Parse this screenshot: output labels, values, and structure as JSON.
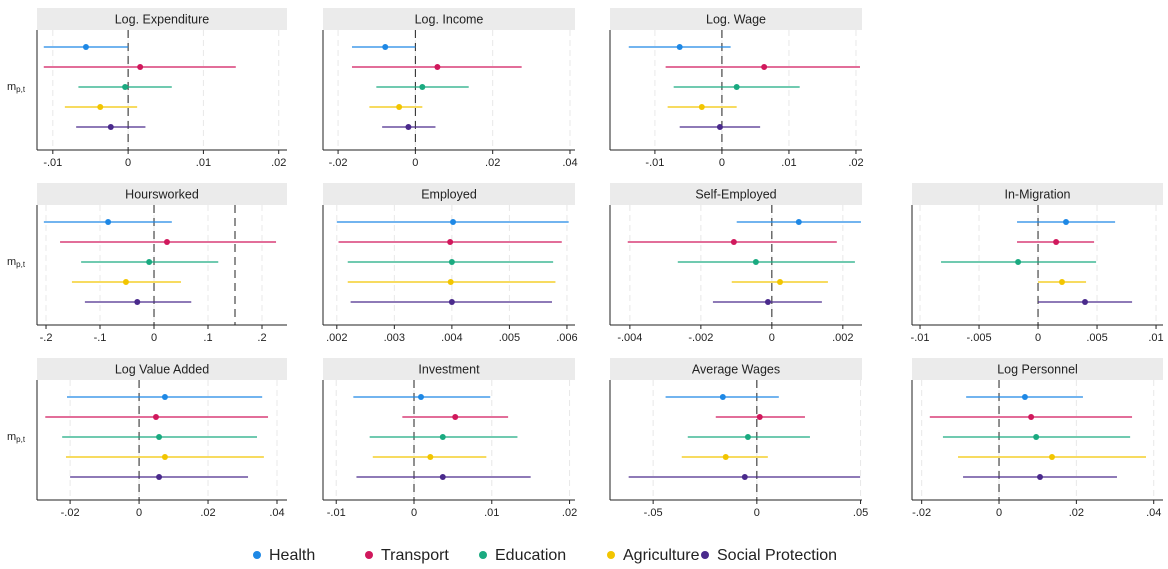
{
  "legend": [
    {
      "name": "Health",
      "color": "#1e88e5"
    },
    {
      "name": "Transport",
      "color": "#d0185c"
    },
    {
      "name": "Education",
      "color": "#1aaa80"
    },
    {
      "name": "Agriculture",
      "color": "#f2c500"
    },
    {
      "name": "Social Protection",
      "color": "#4a2a8c"
    }
  ],
  "chart_data": [
    {
      "type": "dot-whisker",
      "title": "Log. Expenditure",
      "ylabel": {
        "base": "m",
        "sub": "p,t"
      },
      "grid": true,
      "ref_lines": [
        0
      ],
      "xlim": [
        -0.0121,
        0.0211
      ],
      "xticks": [
        {
          "value": -0.01,
          "label": "-.01"
        },
        0,
        {
          "value": 0.01,
          "label": ".01"
        },
        {
          "value": 0.02,
          "label": ".02"
        }
      ],
      "points": [
        {
          "value": -0.0056,
          "lower": -0.0112,
          "upper": 0.0
        },
        {
          "value": 0.0016,
          "lower": -0.0112,
          "upper": 0.0143
        },
        {
          "value": -0.0004,
          "lower": -0.0066,
          "upper": 0.0058
        },
        {
          "value": -0.0037,
          "lower": -0.0084,
          "upper": 0.0012
        },
        {
          "value": -0.0023,
          "lower": -0.0069,
          "upper": 0.0023
        }
      ]
    },
    {
      "type": "dot-whisker",
      "title": "Log. Income",
      "grid": true,
      "ref_lines": [
        0
      ],
      "xlim": [
        -0.0239,
        0.0413
      ],
      "xticks": [
        {
          "value": -0.02,
          "label": "-.02"
        },
        0,
        {
          "value": 0.02,
          "label": ".02"
        },
        {
          "value": 0.04,
          "label": ".04"
        }
      ],
      "points": [
        {
          "value": -0.0078,
          "lower": -0.0164,
          "upper": 0.0
        },
        {
          "value": 0.0057,
          "lower": -0.0164,
          "upper": 0.0275
        },
        {
          "value": 0.0018,
          "lower": -0.0101,
          "upper": 0.0138
        },
        {
          "value": -0.0042,
          "lower": -0.0119,
          "upper": 0.0018
        },
        {
          "value": -0.0018,
          "lower": -0.0086,
          "upper": 0.0052
        }
      ]
    },
    {
      "type": "dot-whisker",
      "title": "Log. Wage",
      "grid": true,
      "ref_lines": [
        0
      ],
      "xlim": [
        -0.0167,
        0.0209
      ],
      "xticks": [
        {
          "value": -0.01,
          "label": "-.01"
        },
        0,
        {
          "value": 0.01,
          "label": ".01"
        },
        {
          "value": 0.02,
          "label": ".02"
        }
      ],
      "points": [
        {
          "value": -0.0063,
          "lower": -0.0139,
          "upper": 0.0013
        },
        {
          "value": 0.0063,
          "lower": -0.0084,
          "upper": 0.0206
        },
        {
          "value": 0.0022,
          "lower": -0.0072,
          "upper": 0.0116
        },
        {
          "value": -0.003,
          "lower": -0.0081,
          "upper": 0.0022
        },
        {
          "value": -0.0003,
          "lower": -0.0063,
          "upper": 0.0057
        }
      ]
    },
    {
      "type": "dot-whisker",
      "title": "Hoursworked",
      "ylabel": {
        "base": "m",
        "sub": "p,t"
      },
      "grid": true,
      "ref_lines": [
        0,
        0.15
      ],
      "xlim": [
        -0.2167,
        0.2463
      ],
      "xticks": [
        {
          "value": -0.2,
          "label": "-.2"
        },
        {
          "value": -0.1,
          "label": "-.1"
        },
        0,
        {
          "value": 0.1,
          "label": ".1"
        },
        {
          "value": 0.2,
          "label": ".2"
        }
      ],
      "points": [
        {
          "value": -0.085,
          "lower": -0.204,
          "upper": 0.033
        },
        {
          "value": 0.024,
          "lower": -0.174,
          "upper": 0.226
        },
        {
          "value": -0.009,
          "lower": -0.135,
          "upper": 0.119
        },
        {
          "value": -0.052,
          "lower": -0.152,
          "upper": 0.05
        },
        {
          "value": -0.031,
          "lower": -0.128,
          "upper": 0.069
        }
      ]
    },
    {
      "type": "dot-whisker",
      "title": "Employed",
      "grid": true,
      "ref_lines": [],
      "xlim": [
        0.00176,
        0.00614
      ],
      "xticks": [
        {
          "value": 0.002,
          "label": ".002"
        },
        {
          "value": 0.003,
          "label": ".003"
        },
        {
          "value": 0.004,
          "label": ".004"
        },
        {
          "value": 0.005,
          "label": ".005"
        },
        {
          "value": 0.006,
          "label": ".006"
        }
      ],
      "points": [
        {
          "value": 0.00402,
          "lower": 0.002,
          "upper": 0.00603
        },
        {
          "value": 0.00397,
          "lower": 0.00203,
          "upper": 0.00591
        },
        {
          "value": 0.004,
          "lower": 0.00219,
          "upper": 0.00576
        },
        {
          "value": 0.00398,
          "lower": 0.00219,
          "upper": 0.0058
        },
        {
          "value": 0.004,
          "lower": 0.00224,
          "upper": 0.00574
        }
      ]
    },
    {
      "type": "dot-whisker",
      "title": "Self-Employed",
      "grid": true,
      "ref_lines": [
        0
      ],
      "xlim": [
        -0.00456,
        0.00254
      ],
      "xticks": [
        {
          "value": -0.004,
          "label": "-.004"
        },
        {
          "value": -0.002,
          "label": "-.002"
        },
        0,
        {
          "value": 0.002,
          "label": ".002"
        }
      ],
      "points": [
        {
          "value": 0.00076,
          "lower": -0.00099,
          "upper": 0.00251
        },
        {
          "value": -0.00107,
          "lower": -0.00406,
          "upper": 0.00183
        },
        {
          "value": -0.00045,
          "lower": -0.00265,
          "upper": 0.00234
        },
        {
          "value": 0.00023,
          "lower": -0.00113,
          "upper": 0.00158
        },
        {
          "value": -0.00011,
          "lower": -0.00166,
          "upper": 0.00141
        }
      ]
    },
    {
      "type": "dot-whisker",
      "title": "In-Migration",
      "grid": true,
      "ref_lines": [
        0
      ],
      "xlim": [
        -0.01068,
        0.01059
      ],
      "xticks": [
        {
          "value": -0.01,
          "label": "-.01"
        },
        {
          "value": -0.005,
          "label": "-.005"
        },
        0,
        {
          "value": 0.005,
          "label": ".005"
        },
        {
          "value": 0.01,
          "label": ".01"
        }
      ],
      "points": [
        {
          "value": 0.00237,
          "lower": -0.00178,
          "upper": 0.00653
        },
        {
          "value": 0.00153,
          "lower": -0.00178,
          "upper": 0.00475
        },
        {
          "value": -0.00169,
          "lower": -0.00822,
          "upper": 0.00492
        },
        {
          "value": 0.00203,
          "lower": 0.0,
          "upper": 0.00407
        },
        {
          "value": 0.00398,
          "lower": 0.0,
          "upper": 0.00797
        }
      ]
    },
    {
      "type": "dot-whisker",
      "title": "Log Value Added",
      "ylabel": {
        "base": "m",
        "sub": "p,t"
      },
      "grid": true,
      "ref_lines": [
        0
      ],
      "xlim": [
        -0.0296,
        0.0429
      ],
      "xticks": [
        {
          "value": -0.02,
          "label": "-.02"
        },
        0,
        {
          "value": 0.02,
          "label": ".02"
        },
        {
          "value": 0.04,
          "label": ".04"
        }
      ],
      "points": [
        {
          "value": 0.0075,
          "lower": -0.0209,
          "upper": 0.0357
        },
        {
          "value": 0.0049,
          "lower": -0.0272,
          "upper": 0.0374
        },
        {
          "value": 0.0058,
          "lower": -0.0223,
          "upper": 0.0342
        },
        {
          "value": 0.0075,
          "lower": -0.0212,
          "upper": 0.0362
        },
        {
          "value": 0.0058,
          "lower": -0.02,
          "upper": 0.0316
        }
      ]
    },
    {
      "type": "dot-whisker",
      "title": "Investment",
      "grid": true,
      "ref_lines": [
        0
      ],
      "xlim": [
        -0.0117,
        0.0207
      ],
      "xticks": [
        {
          "value": -0.01,
          "label": "-.01"
        },
        0,
        {
          "value": 0.01,
          "label": ".01"
        },
        {
          "value": 0.02,
          "label": ".02"
        }
      ],
      "points": [
        {
          "value": 0.0009,
          "lower": -0.0078,
          "upper": 0.0098
        },
        {
          "value": 0.0053,
          "lower": -0.0015,
          "upper": 0.0121
        },
        {
          "value": 0.0037,
          "lower": -0.0057,
          "upper": 0.0133
        },
        {
          "value": 0.0021,
          "lower": -0.0053,
          "upper": 0.0093
        },
        {
          "value": 0.0037,
          "lower": -0.0074,
          "upper": 0.015
        }
      ]
    },
    {
      "type": "dot-whisker",
      "title": "Average Wages",
      "grid": true,
      "ref_lines": [
        0
      ],
      "xlim": [
        -0.0708,
        0.0507
      ],
      "xticks": [
        {
          "value": -0.05,
          "label": "-.05"
        },
        0,
        {
          "value": 0.05,
          "label": ".05"
        }
      ],
      "points": [
        {
          "value": -0.0164,
          "lower": -0.044,
          "upper": 0.0106
        },
        {
          "value": 0.0014,
          "lower": -0.0198,
          "upper": 0.0232
        },
        {
          "value": -0.0043,
          "lower": -0.0333,
          "upper": 0.0256
        },
        {
          "value": -0.015,
          "lower": -0.0362,
          "upper": 0.0053
        },
        {
          "value": -0.0058,
          "lower": -0.0618,
          "upper": 0.0498
        }
      ]
    },
    {
      "type": "dot-whisker",
      "title": "Log Personnel",
      "grid": true,
      "ref_lines": [
        0
      ],
      "xlim": [
        -0.0225,
        0.0424
      ],
      "xticks": [
        {
          "value": -0.02,
          "label": "-.02"
        },
        0,
        {
          "value": 0.02,
          "label": ".02"
        },
        {
          "value": 0.04,
          "label": ".04"
        }
      ],
      "points": [
        {
          "value": 0.0067,
          "lower": -0.0085,
          "upper": 0.0217
        },
        {
          "value": 0.0083,
          "lower": -0.0179,
          "upper": 0.0344
        },
        {
          "value": 0.0096,
          "lower": -0.0145,
          "upper": 0.0339
        },
        {
          "value": 0.0137,
          "lower": -0.0106,
          "upper": 0.038
        },
        {
          "value": 0.0106,
          "lower": -0.0093,
          "upper": 0.0305
        }
      ]
    }
  ]
}
